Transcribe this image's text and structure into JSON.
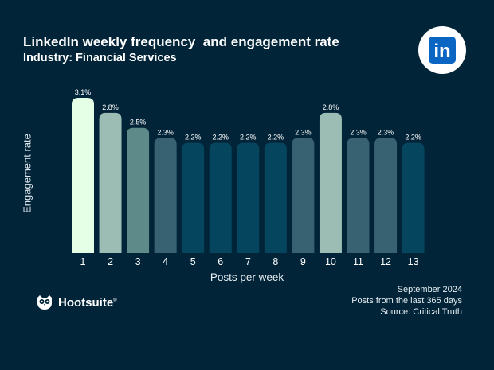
{
  "header": {
    "title": "LinkedIn weekly frequency  and engagement rate",
    "subtitle": "Industry: Financial Services"
  },
  "logo": {
    "icon": "linkedin-icon",
    "text": "in"
  },
  "brand": {
    "icon": "owl-icon",
    "name": "Hootsuite",
    "mark": "®"
  },
  "source": {
    "date": "September 2024",
    "note": "Posts from the last 365 days",
    "credit": "Source: Critical Truth"
  },
  "colors": {
    "background": "#012438",
    "bar_levels": {
      "3.1": "#e4ffe6",
      "2.8": "#9bbdb3",
      "2.5": "#5e8a8a",
      "2.3": "#386272",
      "2.2": "#05465e"
    }
  },
  "chart_data": {
    "type": "bar",
    "title": "LinkedIn weekly frequency  and engagement rate",
    "subtitle": "Industry: Financial Services",
    "xlabel": "Posts per week",
    "ylabel": "Engagement rate",
    "categories": [
      "1",
      "2",
      "3",
      "4",
      "5",
      "6",
      "7",
      "8",
      "9",
      "10",
      "11",
      "12",
      "13"
    ],
    "values": [
      3.1,
      2.8,
      2.5,
      2.3,
      2.2,
      2.2,
      2.2,
      2.2,
      2.3,
      2.8,
      2.3,
      2.3,
      2.2
    ],
    "data_labels": [
      "3.1%",
      "2.8%",
      "2.5%",
      "2.3%",
      "2.2%",
      "2.2%",
      "2.2%",
      "2.2%",
      "2.3%",
      "2.8%",
      "2.3%",
      "2.3%",
      "2.2%"
    ],
    "ylim": [
      0,
      3.1
    ],
    "grid": false,
    "axis_ticks_y": false
  }
}
